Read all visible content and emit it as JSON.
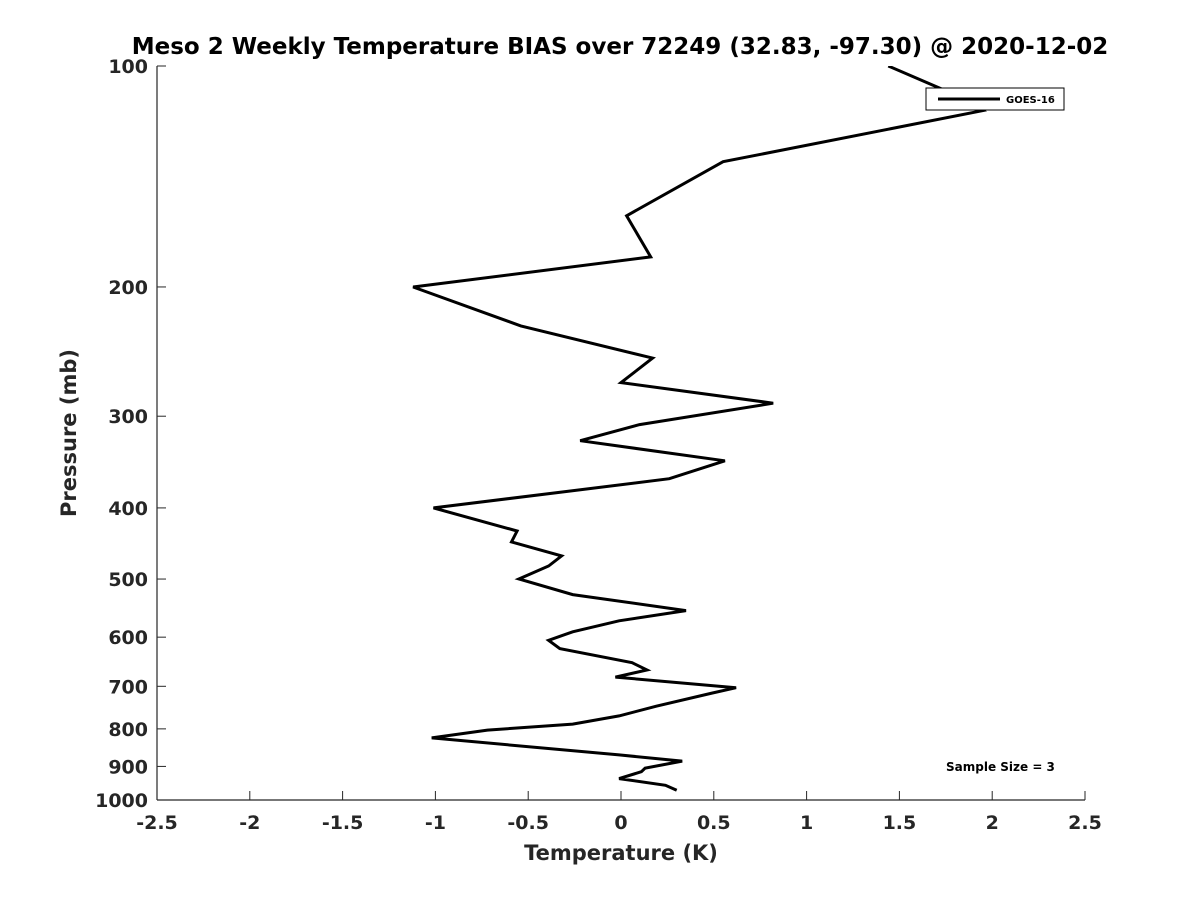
{
  "chart_data": {
    "type": "line",
    "title": "Meso 2 Weekly Temperature BIAS over 72249 (32.83, -97.30) @ 2020-12-02",
    "xlabel": "Temperature (K)",
    "ylabel": "Pressure (mb)",
    "xlim": [
      -2.5,
      2.5
    ],
    "ylim": [
      100,
      1000
    ],
    "y_scale": "log",
    "y_reversed": true,
    "x_ticks": [
      -2.5,
      -2,
      -1.5,
      -1,
      -0.5,
      0,
      0.5,
      1,
      1.5,
      2,
      2.5
    ],
    "x_tick_labels": [
      "-2.5",
      "-2",
      "-1.5",
      "-1",
      "-0.5",
      "0",
      "0.5",
      "1",
      "1.5",
      "2",
      "2.5"
    ],
    "y_ticks": [
      100,
      200,
      300,
      400,
      500,
      600,
      700,
      800,
      900,
      1000
    ],
    "y_tick_labels": [
      "100",
      "200",
      "300",
      "400",
      "500",
      "600",
      "700",
      "800",
      "900",
      "1000"
    ],
    "grid": false,
    "legend": {
      "position": "top-right",
      "entries": [
        "GOES-16"
      ]
    },
    "annotation": "Sample Size = 3",
    "line_color": "#000000",
    "series": [
      {
        "name": "GOES-16",
        "points": [
          {
            "temp": 1.44,
            "pressure": 100
          },
          {
            "temp": 1.82,
            "pressure": 110
          },
          {
            "temp": 1.95,
            "pressure": 115
          },
          {
            "temp": 0.55,
            "pressure": 135
          },
          {
            "temp": 0.03,
            "pressure": 160
          },
          {
            "temp": 0.16,
            "pressure": 182
          },
          {
            "temp": -1.12,
            "pressure": 200
          },
          {
            "temp": -0.54,
            "pressure": 226
          },
          {
            "temp": 0.17,
            "pressure": 250
          },
          {
            "temp": 0.0,
            "pressure": 270
          },
          {
            "temp": 0.82,
            "pressure": 288
          },
          {
            "temp": 0.1,
            "pressure": 308
          },
          {
            "temp": -0.22,
            "pressure": 324
          },
          {
            "temp": 0.56,
            "pressure": 345
          },
          {
            "temp": 0.26,
            "pressure": 365
          },
          {
            "temp": -0.3,
            "pressure": 380
          },
          {
            "temp": -1.01,
            "pressure": 400
          },
          {
            "temp": -0.56,
            "pressure": 430
          },
          {
            "temp": -0.59,
            "pressure": 445
          },
          {
            "temp": -0.32,
            "pressure": 465
          },
          {
            "temp": -0.39,
            "pressure": 480
          },
          {
            "temp": -0.55,
            "pressure": 500
          },
          {
            "temp": -0.26,
            "pressure": 525
          },
          {
            "temp": 0.35,
            "pressure": 552
          },
          {
            "temp": -0.01,
            "pressure": 570
          },
          {
            "temp": -0.26,
            "pressure": 590
          },
          {
            "temp": -0.39,
            "pressure": 606
          },
          {
            "temp": -0.33,
            "pressure": 622
          },
          {
            "temp": 0.06,
            "pressure": 650
          },
          {
            "temp": 0.14,
            "pressure": 665
          },
          {
            "temp": -0.03,
            "pressure": 680
          },
          {
            "temp": 0.62,
            "pressure": 703
          },
          {
            "temp": 0.49,
            "pressure": 715
          },
          {
            "temp": 0.19,
            "pressure": 745
          },
          {
            "temp": -0.01,
            "pressure": 768
          },
          {
            "temp": -0.26,
            "pressure": 788
          },
          {
            "temp": -0.72,
            "pressure": 803
          },
          {
            "temp": -1.02,
            "pressure": 823
          },
          {
            "temp": -0.01,
            "pressure": 868
          },
          {
            "temp": 0.33,
            "pressure": 885
          },
          {
            "temp": 0.13,
            "pressure": 905
          },
          {
            "temp": 0.11,
            "pressure": 915
          },
          {
            "temp": -0.01,
            "pressure": 935
          },
          {
            "temp": 0.24,
            "pressure": 955
          },
          {
            "temp": 0.3,
            "pressure": 970
          }
        ]
      }
    ]
  }
}
